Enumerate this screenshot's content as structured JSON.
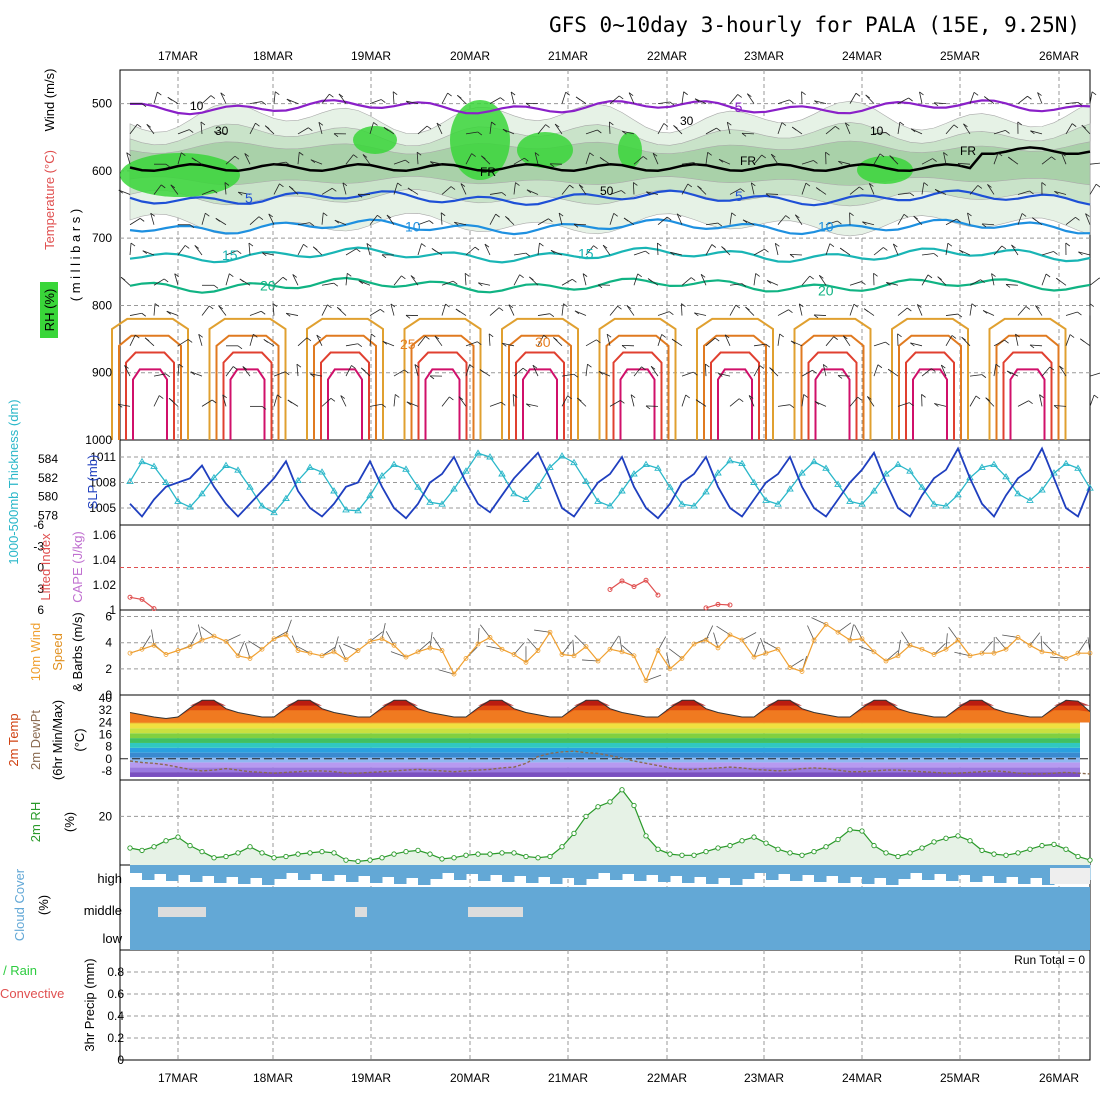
{
  "title": "GFS 0~10day 3-hourly for PALA (15E, 9.25N)",
  "colors": {
    "rh": "#2ecc40",
    "temp_cold": "#1e88e5",
    "temp_warm": "#e67e22",
    "freezing": "#000000",
    "thickness": "#2ab7c9",
    "slp": "#1f3fbf",
    "lifted_index": "#e05050",
    "cape": "#c070d0",
    "wind10m": "#f0a030",
    "temp2m": "#d04010",
    "dewpoint": "#8a6a50",
    "rh2m": "#2a9a2a",
    "cloud": "#63a8d6",
    "precip": "#2ecc40"
  },
  "chart_data": [
    {
      "type": "heatmap",
      "panel": "upper-air",
      "x": [
        "17MAR",
        "18MAR",
        "19MAR",
        "20MAR",
        "21MAR",
        "22MAR",
        "23MAR",
        "24MAR",
        "25MAR",
        "26MAR"
      ],
      "y_label_parts": [
        "Wind (m/s)",
        "Temperature (°C)",
        "RH (%)"
      ],
      "y_unit": "( m i l l i b a r s )",
      "y_ticks": [
        500,
        600,
        700,
        800,
        900,
        1000
      ],
      "ylim": [
        1000,
        450
      ],
      "isotherm_labels": [
        "-5",
        "FR",
        "5",
        "10",
        "15",
        "20",
        "25",
        "30"
      ],
      "rh_labels": [
        "10",
        "30",
        "50"
      ]
    },
    {
      "type": "line",
      "panel": "thickness-slp",
      "ylabel_left": "1000-500mb Thickness (dm)",
      "ylabel_right": "SLP (mb)",
      "left_ticks": [
        "584",
        "582",
        "580",
        "578"
      ],
      "right_ticks": [
        "1011",
        "1008",
        "1005"
      ],
      "series": [
        {
          "name": "1000-500mb Thickness (dm)",
          "values": [
            581.6,
            583.7,
            583.2,
            581.5,
            579.5,
            578.9,
            580.3,
            582.0,
            583.3,
            582.8,
            581.0,
            579.0,
            578.3,
            579.8,
            581.7,
            583.1,
            582.6,
            580.6,
            578.6,
            578.5,
            580.1,
            582.2,
            583.4,
            582.9,
            581.0,
            579.4,
            579.2,
            580.8,
            582.7,
            584.6,
            584.2,
            582.4,
            580.3,
            579.7,
            581.1,
            583.1,
            584.3,
            583.6,
            581.6,
            579.5,
            579.0,
            580.6,
            582.4,
            583.4,
            583.0,
            581.0,
            579.2,
            579.0,
            580.5,
            582.5,
            583.8,
            583.5,
            581.5,
            579.6,
            579.2,
            580.8,
            582.5,
            583.7,
            583.0,
            581.3,
            579.5,
            579.2,
            580.6,
            582.4,
            583.4,
            582.7,
            581.0,
            579.2,
            579.0,
            580.2,
            582.0,
            583.1,
            583.4,
            582.1,
            580.3,
            579.6,
            580.7,
            582.5,
            583.5,
            583.0,
            580.9
          ]
        },
        {
          "name": "SLP (mb)",
          "values": [
            1005.5,
            1004.0,
            1006.0,
            1007.5,
            1008.0,
            1008.5,
            1010.0,
            1007.5,
            1005.5,
            1004.0,
            1005.5,
            1007.0,
            1008.5,
            1010.5,
            1007.0,
            1005.0,
            1004.0,
            1005.5,
            1007.5,
            1008.0,
            1010.5,
            1007.5,
            1005.0,
            1003.8,
            1005.5,
            1008.0,
            1009.0,
            1011.0,
            1008.0,
            1005.5,
            1004.5,
            1006.5,
            1008.5,
            1010.0,
            1011.5,
            1008.5,
            1005.0,
            1004.0,
            1006.0,
            1008.0,
            1009.0,
            1011.0,
            1007.5,
            1005.0,
            1003.8,
            1005.5,
            1008.0,
            1009.0,
            1011.0,
            1007.5,
            1005.0,
            1004.0,
            1006.0,
            1008.0,
            1009.0,
            1011.0,
            1007.5,
            1005.0,
            1004.0,
            1006.0,
            1008.0,
            1009.5,
            1011.5,
            1008.0,
            1005.0,
            1004.0,
            1006.5,
            1008.5,
            1009.5,
            1012.0,
            1008.5,
            1005.5,
            1004.0,
            1006.5,
            1008.5,
            1009.5,
            1012.0,
            1008.5,
            1005.0,
            1004.0,
            1007.5
          ]
        }
      ]
    },
    {
      "type": "line",
      "panel": "stability",
      "ylabel_left": "Lifted Index",
      "ylabel_right": "CAPE (J/kg)",
      "left_ticks": [
        "-6",
        "-3",
        "0",
        "3",
        "6"
      ],
      "right_ticks": [
        "1.06",
        "1.04",
        "1.02",
        "1"
      ],
      "series": [
        {
          "name": "Lifted Index",
          "segments": [
            [
              [
                0,
                4.2
              ],
              [
                1,
                4.5
              ],
              [
                2,
                5.8
              ]
            ],
            [
              [
                40,
                3.1
              ],
              [
                41,
                1.9
              ],
              [
                42,
                2.7
              ],
              [
                43,
                1.8
              ],
              [
                44,
                3.9
              ]
            ],
            [
              [
                48,
                5.7
              ],
              [
                49,
                5.2
              ],
              [
                50,
                5.3
              ]
            ]
          ]
        }
      ]
    },
    {
      "type": "line",
      "panel": "wind10m",
      "ylabel": "10m Wind Speed & Barbs (m/s)",
      "ylim": [
        0,
        6
      ],
      "y_ticks": [
        "6",
        "4",
        "2",
        "0"
      ],
      "series": [
        {
          "name": "10m Wind Speed",
          "values": [
            3.2,
            3.5,
            3.8,
            3.1,
            3.4,
            3.7,
            4.2,
            4.5,
            4.1,
            3.0,
            2.8,
            3.5,
            4.3,
            4.6,
            3.4,
            3.2,
            3.0,
            3.3,
            2.7,
            3.4,
            4.1,
            4.3,
            3.8,
            2.9,
            3.3,
            3.6,
            3.4,
            1.6,
            2.8,
            3.9,
            4.4,
            3.5,
            3.1,
            2.5,
            3.4,
            4.8,
            3.1,
            3.0,
            3.7,
            2.6,
            3.5,
            3.3,
            3.0,
            1.1,
            3.4,
            2.0,
            2.8,
            3.9,
            4.2,
            3.6,
            4.6,
            4.2,
            2.9,
            3.2,
            3.5,
            2.1,
            1.8,
            4.2,
            5.4,
            4.8,
            4.2,
            4.3,
            3.3,
            2.6,
            3.0,
            3.8,
            3.5,
            3.1,
            3.5,
            4.2,
            3.0,
            3.2,
            3.2,
            3.5,
            4.4,
            3.8,
            3.3,
            3.2,
            2.8,
            3.2,
            3.2
          ]
        }
      ]
    },
    {
      "type": "area",
      "panel": "temp2m",
      "ylabel": "2m Temp 2m DewPt (6hr Min/Max) (°C)",
      "y_ticks": [
        "40",
        "32",
        "24",
        "16",
        "8",
        "0",
        "-8"
      ],
      "ylim": [
        -14,
        42
      ],
      "series": [
        {
          "name": "2m Temp",
          "values": [
            30.5,
            29.0,
            27.5,
            26.5,
            27.5,
            33.5,
            38.5,
            38.5,
            33.0,
            30.5,
            29.0,
            27.5,
            27.5,
            33.5,
            38.5,
            38.5,
            33.0,
            30.5,
            29.0,
            27.5,
            27.5,
            33.5,
            38.5,
            38.5,
            33.0,
            30.5,
            29.0,
            27.5,
            27.5,
            33.5,
            38.5,
            38.5,
            33.0,
            30.5,
            29.0,
            27.5,
            27.5,
            33.5,
            38.5,
            38.5,
            33.0,
            30.5,
            29.0,
            27.5,
            27.5,
            33.5,
            38.5,
            38.5,
            33.0,
            30.5,
            29.0,
            27.5,
            27.5,
            33.5,
            38.5,
            38.5,
            33.0,
            30.5,
            29.0,
            27.5,
            27.5,
            33.5,
            38.5,
            38.5,
            33.0,
            30.5,
            29.0,
            27.5,
            27.5,
            33.5,
            38.5,
            38.5,
            33.0,
            30.5,
            29.0,
            27.5,
            27.5,
            33.5,
            38.5,
            38.0,
            31.0
          ]
        },
        {
          "name": "2m DewPt",
          "values": [
            -1.5,
            -2.5,
            -3.0,
            -4.0,
            -5.5,
            -7.0,
            -8.0,
            -7.5,
            -6.5,
            -7.5,
            -8.5,
            -9.0,
            -9.5,
            -9.0,
            -8.5,
            -8.0,
            -8.0,
            -8.5,
            -9.5,
            -9.5,
            -9.0,
            -8.5,
            -8.0,
            -7.5,
            -7.0,
            -7.5,
            -8.0,
            -8.5,
            -8.0,
            -7.5,
            -7.0,
            -6.0,
            -5.5,
            -3.0,
            1.5,
            3.5,
            4.5,
            5.0,
            4.0,
            3.5,
            2.0,
            0.5,
            -1.5,
            -3.0,
            -4.5,
            -6.0,
            -7.0,
            -7.0,
            -6.5,
            -6.0,
            -5.5,
            -6.0,
            -7.0,
            -7.5,
            -8.0,
            -7.5,
            -6.5,
            -6.0,
            -6.5,
            -7.5,
            -8.5,
            -8.5,
            -8.0,
            -7.5,
            -7.5,
            -8.0,
            -8.5,
            -9.0,
            -9.5,
            -9.5,
            -9.0,
            -8.5,
            -8.0,
            -8.5,
            -9.5,
            -10.0,
            -10.0,
            -9.5,
            -9.0,
            -9.5,
            -10.0
          ]
        }
      ]
    },
    {
      "type": "area",
      "panel": "rh2m",
      "ylabel": "2m RH (%)",
      "y_ticks": [
        "20"
      ],
      "ylim": [
        0,
        35
      ],
      "series": [
        {
          "name": "2m RH",
          "values": [
            7.0,
            6.0,
            7.5,
            10.0,
            11.5,
            8.0,
            5.5,
            3.0,
            3.5,
            5.0,
            7.5,
            5.0,
            3.0,
            3.5,
            4.5,
            5.0,
            5.5,
            5.0,
            2.0,
            1.5,
            2.0,
            3.0,
            4.5,
            5.5,
            6.0,
            4.5,
            2.5,
            3.0,
            4.0,
            4.5,
            4.5,
            5.0,
            5.0,
            3.5,
            3.0,
            3.5,
            7.5,
            13.0,
            20.0,
            24.0,
            26.0,
            31.0,
            24.5,
            12.0,
            6.5,
            4.5,
            4.0,
            4.0,
            5.5,
            7.0,
            8.0,
            10.0,
            11.5,
            9.0,
            6.5,
            5.0,
            4.0,
            5.5,
            7.5,
            10.5,
            14.5,
            14.0,
            8.0,
            5.0,
            3.5,
            5.0,
            7.0,
            9.5,
            11.0,
            12.0,
            10.0,
            6.0,
            4.5,
            4.0,
            5.0,
            6.5,
            8.0,
            8.5,
            6.5,
            3.5,
            2.0
          ]
        }
      ]
    },
    {
      "type": "heatmap",
      "panel": "cloud",
      "ylabel": "Cloud Cover (%)",
      "rows": [
        "high",
        "middle",
        "low"
      ]
    },
    {
      "type": "bar",
      "panel": "precip",
      "ylabel": "3hr Precip (mm)",
      "legend": [
        "Total / Rain",
        "Convective"
      ],
      "y_ticks": [
        "0.8",
        "0.6",
        "0.4",
        "0.2",
        "0"
      ],
      "ylim": [
        0,
        1
      ],
      "annotation": "Run Total = 0",
      "values": []
    }
  ]
}
